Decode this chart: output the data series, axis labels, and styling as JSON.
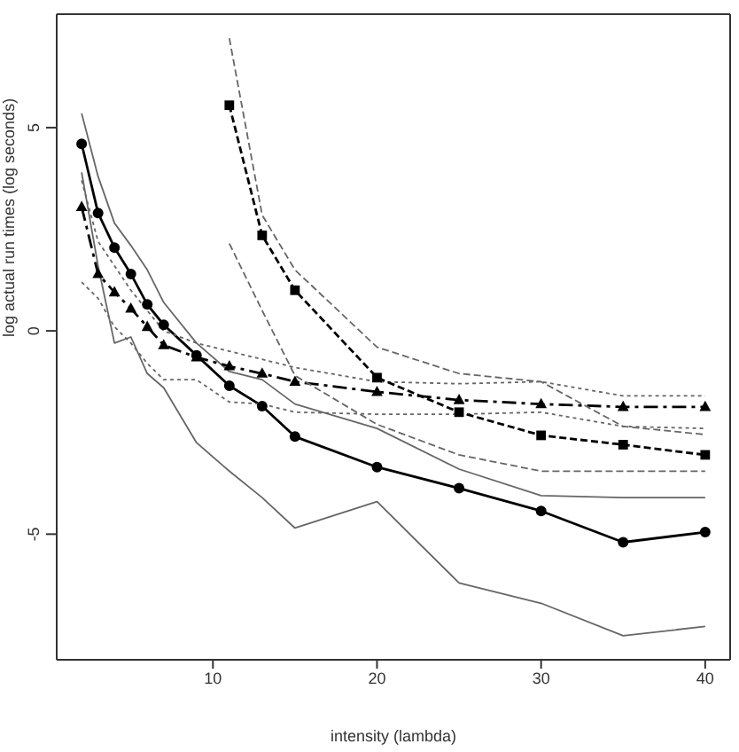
{
  "chart_data": {
    "type": "line",
    "xlabel": "intensity (lambda)",
    "ylabel": "log actual run times (log seconds)",
    "x": [
      2,
      3,
      4,
      5,
      6,
      7,
      9,
      11,
      13,
      15,
      20,
      25,
      30,
      35,
      40
    ],
    "xlim": [
      0.48,
      41.52
    ],
    "ylim": [
      -8.09,
      7.79
    ],
    "xticks": [
      10,
      20,
      30,
      40
    ],
    "yticks": [
      -5,
      0,
      5
    ],
    "grid": false,
    "series": [
      {
        "color": "#666666",
        "line_style": "solid",
        "marker": "none",
        "values": [
          5.35,
          3.8,
          2.65,
          2.1,
          1.5,
          0.7,
          -0.3,
          -1.0,
          -1.2,
          -1.8,
          -2.4,
          -3.4,
          -4.05,
          -4.1,
          -4.1
        ]
      },
      {
        "color": "#666666",
        "line_style": "solid",
        "marker": "none",
        "values": [
          3.9,
          1.6,
          -0.3,
          -0.15,
          -1.05,
          -1.4,
          -2.75,
          -3.45,
          -4.1,
          -4.85,
          -4.2,
          -6.2,
          -6.7,
          -7.5,
          -7.27
        ]
      },
      {
        "color": "#000000",
        "line_style": "solid",
        "marker": "circle",
        "values": [
          4.6,
          2.9,
          2.05,
          1.4,
          0.65,
          0.15,
          -0.6,
          -1.35,
          -1.85,
          -2.6,
          -3.35,
          -3.87,
          -4.43,
          -5.2,
          -4.95
        ]
      },
      {
        "color": "#666666",
        "line_style": "dotted",
        "marker": "none",
        "values": [
          3.7,
          2.2,
          1.6,
          1.0,
          0.5,
          0.0,
          -0.3,
          -0.5,
          -0.7,
          -0.9,
          -1.25,
          -1.3,
          -1.25,
          -1.6,
          -1.6
        ]
      },
      {
        "color": "#666666",
        "line_style": "dotted",
        "marker": "none",
        "values": [
          1.2,
          0.8,
          0.1,
          -0.3,
          -0.8,
          -1.2,
          -1.2,
          -1.75,
          -1.8,
          -2.0,
          -2.05,
          -2.05,
          -2.0,
          -2.35,
          -2.4
        ]
      },
      {
        "color": "#000000",
        "line_style": "dashdot",
        "marker": "triangle",
        "values": [
          3.05,
          1.4,
          0.95,
          0.55,
          0.1,
          -0.35,
          -0.65,
          -0.87,
          -1.05,
          -1.25,
          -1.5,
          -1.7,
          -1.8,
          -1.87,
          -1.87
        ]
      },
      {
        "color": "#666666",
        "line_style": "dashed",
        "marker": "none",
        "x": [
          11,
          13,
          15,
          20,
          25,
          30,
          35,
          40
        ],
        "values": [
          7.2,
          2.85,
          1.5,
          -0.4,
          -1.05,
          -1.25,
          -2.35,
          -2.55
        ]
      },
      {
        "color": "#666666",
        "line_style": "dashed",
        "marker": "none",
        "x": [
          11,
          13,
          15,
          20,
          25,
          30,
          35,
          40
        ],
        "values": [
          2.15,
          0.5,
          -1.1,
          -2.3,
          -3.05,
          -3.45,
          -3.45,
          -3.45
        ]
      },
      {
        "color": "#000000",
        "line_style": "dashed",
        "marker": "square",
        "x": [
          11,
          13,
          15,
          20,
          25,
          30,
          35,
          40
        ],
        "values": [
          5.55,
          2.35,
          1.0,
          -1.15,
          -2.0,
          -2.57,
          -2.8,
          -3.05
        ]
      }
    ]
  }
}
